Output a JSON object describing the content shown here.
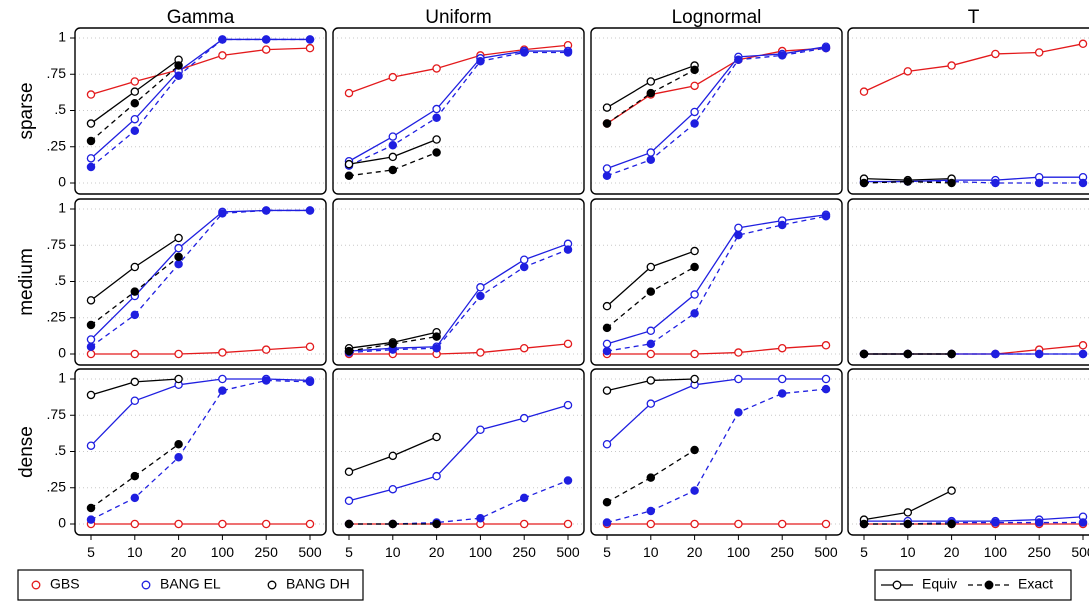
{
  "figure": {
    "columns": [
      "Gamma",
      "Uniform",
      "Lognormal",
      "T"
    ],
    "rows": [
      "sparse",
      "medium",
      "dense"
    ],
    "x_ticks": [
      "5",
      "10",
      "20",
      "100",
      "250",
      "500"
    ],
    "y_ticks": [
      "0",
      ".25",
      ".5",
      ".75",
      "1"
    ],
    "method_legend": [
      {
        "key": "GBS",
        "label": "GBS",
        "color": "#e31a1c"
      },
      {
        "key": "BANG_EL",
        "label": "BANG EL",
        "color": "#1f1fe0"
      },
      {
        "key": "BANG_DH",
        "label": "BANG DH",
        "color": "#000000"
      }
    ],
    "type_legend": [
      {
        "key": "equiv",
        "label": "Equiv"
      },
      {
        "key": "exact",
        "label": "Exact"
      }
    ]
  },
  "chart_data": {
    "type": "line",
    "x": [
      "5",
      "10",
      "20",
      "100",
      "250",
      "500"
    ],
    "ylim": [
      0,
      1
    ],
    "grid": true,
    "legend_placement": "bottom",
    "panels": [
      {
        "row": "sparse",
        "col": "Gamma",
        "series": [
          {
            "method": "GBS",
            "type": "equiv",
            "values": [
              0.61,
              0.7,
              0.78,
              0.88,
              0.92,
              0.93
            ]
          },
          {
            "method": "BANG_EL",
            "type": "equiv",
            "values": [
              0.17,
              0.44,
              0.77,
              0.99,
              0.99,
              0.99
            ]
          },
          {
            "method": "BANG_EL",
            "type": "exact",
            "values": [
              0.11,
              0.36,
              0.74,
              0.99,
              0.99,
              0.99
            ]
          },
          {
            "method": "BANG_DH",
            "type": "equiv",
            "values": [
              0.41,
              0.63,
              0.85,
              null,
              null,
              null
            ]
          },
          {
            "method": "BANG_DH",
            "type": "exact",
            "values": [
              0.29,
              0.55,
              0.81,
              null,
              null,
              null
            ]
          }
        ]
      },
      {
        "row": "sparse",
        "col": "Uniform",
        "series": [
          {
            "method": "GBS",
            "type": "equiv",
            "values": [
              0.62,
              0.73,
              0.79,
              0.88,
              0.92,
              0.95
            ]
          },
          {
            "method": "BANG_EL",
            "type": "equiv",
            "values": [
              0.15,
              0.32,
              0.51,
              0.86,
              0.91,
              0.91
            ]
          },
          {
            "method": "BANG_EL",
            "type": "exact",
            "values": [
              0.12,
              0.26,
              0.45,
              0.84,
              0.9,
              0.9
            ]
          },
          {
            "method": "BANG_DH",
            "type": "equiv",
            "values": [
              0.13,
              0.18,
              0.3,
              null,
              null,
              null
            ]
          },
          {
            "method": "BANG_DH",
            "type": "exact",
            "values": [
              0.05,
              0.09,
              0.21,
              null,
              null,
              null
            ]
          }
        ]
      },
      {
        "row": "sparse",
        "col": "Lognormal",
        "series": [
          {
            "method": "GBS",
            "type": "equiv",
            "values": [
              0.41,
              0.61,
              0.67,
              0.85,
              0.91,
              0.93
            ]
          },
          {
            "method": "BANG_EL",
            "type": "equiv",
            "values": [
              0.1,
              0.21,
              0.49,
              0.87,
              0.89,
              0.94
            ]
          },
          {
            "method": "BANG_EL",
            "type": "exact",
            "values": [
              0.05,
              0.16,
              0.41,
              0.85,
              0.88,
              0.93
            ]
          },
          {
            "method": "BANG_DH",
            "type": "equiv",
            "values": [
              0.52,
              0.7,
              0.81,
              null,
              null,
              null
            ]
          },
          {
            "method": "BANG_DH",
            "type": "exact",
            "values": [
              0.41,
              0.62,
              0.78,
              null,
              null,
              null
            ]
          }
        ]
      },
      {
        "row": "sparse",
        "col": "T",
        "series": [
          {
            "method": "GBS",
            "type": "equiv",
            "values": [
              0.63,
              0.77,
              0.81,
              0.89,
              0.9,
              0.96
            ]
          },
          {
            "method": "BANG_EL",
            "type": "equiv",
            "values": [
              0.01,
              0.01,
              0.02,
              0.02,
              0.04,
              0.04
            ]
          },
          {
            "method": "BANG_EL",
            "type": "exact",
            "values": [
              0.0,
              0.01,
              0.01,
              0.0,
              0.0,
              0.0
            ]
          },
          {
            "method": "BANG_DH",
            "type": "equiv",
            "values": [
              0.03,
              0.02,
              0.03,
              null,
              null,
              null
            ]
          },
          {
            "method": "BANG_DH",
            "type": "exact",
            "values": [
              0.0,
              0.01,
              0.0,
              null,
              null,
              null
            ]
          }
        ]
      },
      {
        "row": "medium",
        "col": "Gamma",
        "series": [
          {
            "method": "GBS",
            "type": "equiv",
            "values": [
              0.0,
              0.0,
              0.0,
              0.01,
              0.03,
              0.05
            ]
          },
          {
            "method": "BANG_EL",
            "type": "equiv",
            "values": [
              0.1,
              0.4,
              0.73,
              0.98,
              0.99,
              0.99
            ]
          },
          {
            "method": "BANG_EL",
            "type": "exact",
            "values": [
              0.05,
              0.27,
              0.62,
              0.97,
              0.99,
              0.99
            ]
          },
          {
            "method": "BANG_DH",
            "type": "equiv",
            "values": [
              0.37,
              0.6,
              0.8,
              null,
              null,
              null
            ]
          },
          {
            "method": "BANG_DH",
            "type": "exact",
            "values": [
              0.2,
              0.43,
              0.67,
              null,
              null,
              null
            ]
          }
        ]
      },
      {
        "row": "medium",
        "col": "Uniform",
        "series": [
          {
            "method": "GBS",
            "type": "equiv",
            "values": [
              0.0,
              0.0,
              0.0,
              0.01,
              0.04,
              0.07
            ]
          },
          {
            "method": "BANG_EL",
            "type": "equiv",
            "values": [
              0.02,
              0.04,
              0.05,
              0.46,
              0.65,
              0.76
            ]
          },
          {
            "method": "BANG_EL",
            "type": "exact",
            "values": [
              0.01,
              0.03,
              0.04,
              0.4,
              0.6,
              0.72
            ]
          },
          {
            "method": "BANG_DH",
            "type": "equiv",
            "values": [
              0.04,
              0.08,
              0.15,
              null,
              null,
              null
            ]
          },
          {
            "method": "BANG_DH",
            "type": "exact",
            "values": [
              0.02,
              0.07,
              0.12,
              null,
              null,
              null
            ]
          }
        ]
      },
      {
        "row": "medium",
        "col": "Lognormal",
        "series": [
          {
            "method": "GBS",
            "type": "equiv",
            "values": [
              0.0,
              0.0,
              0.0,
              0.01,
              0.04,
              0.06
            ]
          },
          {
            "method": "BANG_EL",
            "type": "equiv",
            "values": [
              0.07,
              0.16,
              0.41,
              0.87,
              0.92,
              0.96
            ]
          },
          {
            "method": "BANG_EL",
            "type": "exact",
            "values": [
              0.02,
              0.07,
              0.28,
              0.82,
              0.89,
              0.95
            ]
          },
          {
            "method": "BANG_DH",
            "type": "equiv",
            "values": [
              0.33,
              0.6,
              0.71,
              null,
              null,
              null
            ]
          },
          {
            "method": "BANG_DH",
            "type": "exact",
            "values": [
              0.18,
              0.43,
              0.6,
              null,
              null,
              null
            ]
          }
        ]
      },
      {
        "row": "medium",
        "col": "T",
        "series": [
          {
            "method": "GBS",
            "type": "equiv",
            "values": [
              0.0,
              0.0,
              0.0,
              0.0,
              0.03,
              0.06
            ]
          },
          {
            "method": "BANG_EL",
            "type": "equiv",
            "values": [
              0.0,
              0.0,
              0.0,
              0.0,
              0.0,
              0.0
            ]
          },
          {
            "method": "BANG_EL",
            "type": "exact",
            "values": [
              0.0,
              0.0,
              0.0,
              0.0,
              0.0,
              0.0
            ]
          },
          {
            "method": "BANG_DH",
            "type": "equiv",
            "values": [
              0.0,
              0.0,
              0.0,
              null,
              null,
              null
            ]
          },
          {
            "method": "BANG_DH",
            "type": "exact",
            "values": [
              0.0,
              0.0,
              0.0,
              null,
              null,
              null
            ]
          }
        ]
      },
      {
        "row": "dense",
        "col": "Gamma",
        "series": [
          {
            "method": "GBS",
            "type": "equiv",
            "values": [
              0.0,
              0.0,
              0.0,
              0.0,
              0.0,
              0.0
            ]
          },
          {
            "method": "BANG_EL",
            "type": "equiv",
            "values": [
              0.54,
              0.85,
              0.96,
              1.0,
              1.0,
              0.99
            ]
          },
          {
            "method": "BANG_EL",
            "type": "exact",
            "values": [
              0.03,
              0.18,
              0.46,
              0.92,
              0.99,
              0.98
            ]
          },
          {
            "method": "BANG_DH",
            "type": "equiv",
            "values": [
              0.89,
              0.98,
              1.0,
              null,
              null,
              null
            ]
          },
          {
            "method": "BANG_DH",
            "type": "exact",
            "values": [
              0.11,
              0.33,
              0.55,
              null,
              null,
              null
            ]
          }
        ]
      },
      {
        "row": "dense",
        "col": "Uniform",
        "series": [
          {
            "method": "GBS",
            "type": "equiv",
            "values": [
              0.0,
              0.0,
              0.0,
              0.0,
              0.0,
              0.0
            ]
          },
          {
            "method": "BANG_EL",
            "type": "equiv",
            "values": [
              0.16,
              0.24,
              0.33,
              0.65,
              0.73,
              0.82
            ]
          },
          {
            "method": "BANG_EL",
            "type": "exact",
            "values": [
              0.0,
              0.0,
              0.01,
              0.04,
              0.18,
              0.3
            ]
          },
          {
            "method": "BANG_DH",
            "type": "equiv",
            "values": [
              0.36,
              0.47,
              0.6,
              null,
              null,
              null
            ]
          },
          {
            "method": "BANG_DH",
            "type": "exact",
            "values": [
              0.0,
              0.0,
              0.0,
              null,
              null,
              null
            ]
          }
        ]
      },
      {
        "row": "dense",
        "col": "Lognormal",
        "series": [
          {
            "method": "GBS",
            "type": "equiv",
            "values": [
              0.0,
              0.0,
              0.0,
              0.0,
              0.0,
              0.0
            ]
          },
          {
            "method": "BANG_EL",
            "type": "equiv",
            "values": [
              0.55,
              0.83,
              0.96,
              1.0,
              1.0,
              1.0
            ]
          },
          {
            "method": "BANG_EL",
            "type": "exact",
            "values": [
              0.01,
              0.09,
              0.23,
              0.77,
              0.9,
              0.93
            ]
          },
          {
            "method": "BANG_DH",
            "type": "equiv",
            "values": [
              0.92,
              0.99,
              1.0,
              null,
              null,
              null
            ]
          },
          {
            "method": "BANG_DH",
            "type": "exact",
            "values": [
              0.15,
              0.32,
              0.51,
              null,
              null,
              null
            ]
          }
        ]
      },
      {
        "row": "dense",
        "col": "T",
        "series": [
          {
            "method": "GBS",
            "type": "equiv",
            "values": [
              0.0,
              0.0,
              0.0,
              0.0,
              0.0,
              0.0
            ]
          },
          {
            "method": "BANG_EL",
            "type": "equiv",
            "values": [
              0.02,
              0.02,
              0.02,
              0.02,
              0.03,
              0.05
            ]
          },
          {
            "method": "BANG_EL",
            "type": "exact",
            "values": [
              0.0,
              0.0,
              0.01,
              0.01,
              0.01,
              0.01
            ]
          },
          {
            "method": "BANG_DH",
            "type": "equiv",
            "values": [
              0.03,
              0.08,
              0.23,
              null,
              null,
              null
            ]
          },
          {
            "method": "BANG_DH",
            "type": "exact",
            "values": [
              0.0,
              0.0,
              0.0,
              null,
              null,
              null
            ]
          }
        ]
      }
    ]
  }
}
